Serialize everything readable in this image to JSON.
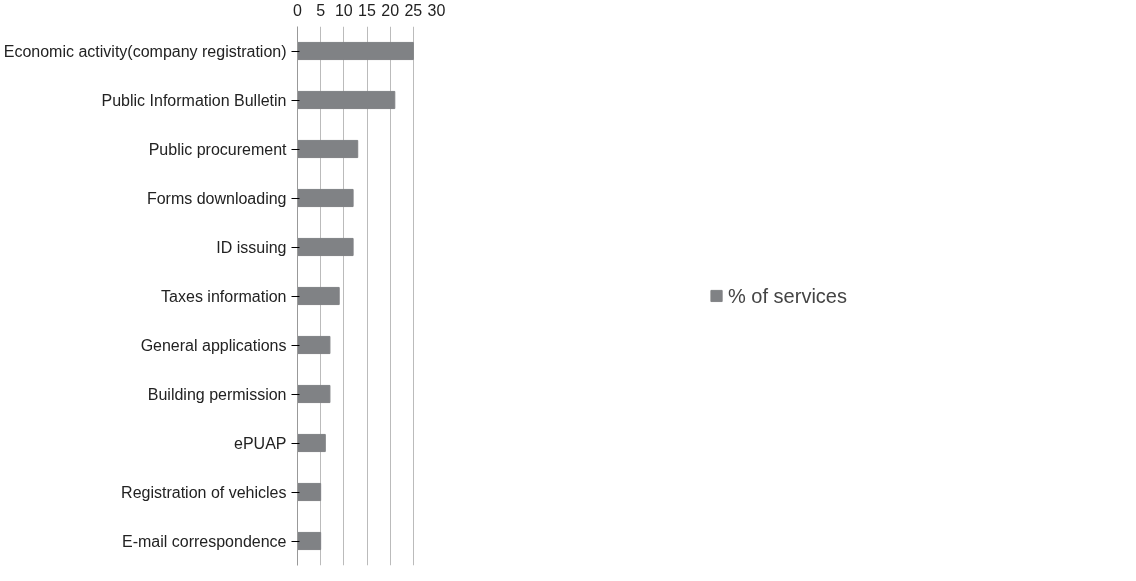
{
  "chart_data": {
    "type": "bar",
    "orientation": "horizontal",
    "categories": [
      "Economic activity(company registration)",
      "Public Information Bulletin",
      "Public procurement",
      "Forms downloading",
      "ID issuing",
      "Taxes information",
      "General applications",
      "Building permission",
      "ePUAP",
      "Registration of vehicles",
      "E-mail correspondence"
    ],
    "series": [
      {
        "name": "% of services",
        "color": "#808285",
        "values": [
          25,
          21,
          13,
          12,
          12,
          9,
          7,
          7,
          6,
          5,
          5
        ]
      }
    ],
    "xlim": [
      0,
      30
    ],
    "xticks": [
      0,
      5,
      10,
      15,
      20,
      25,
      30
    ],
    "grid": "x",
    "legend": "right"
  }
}
